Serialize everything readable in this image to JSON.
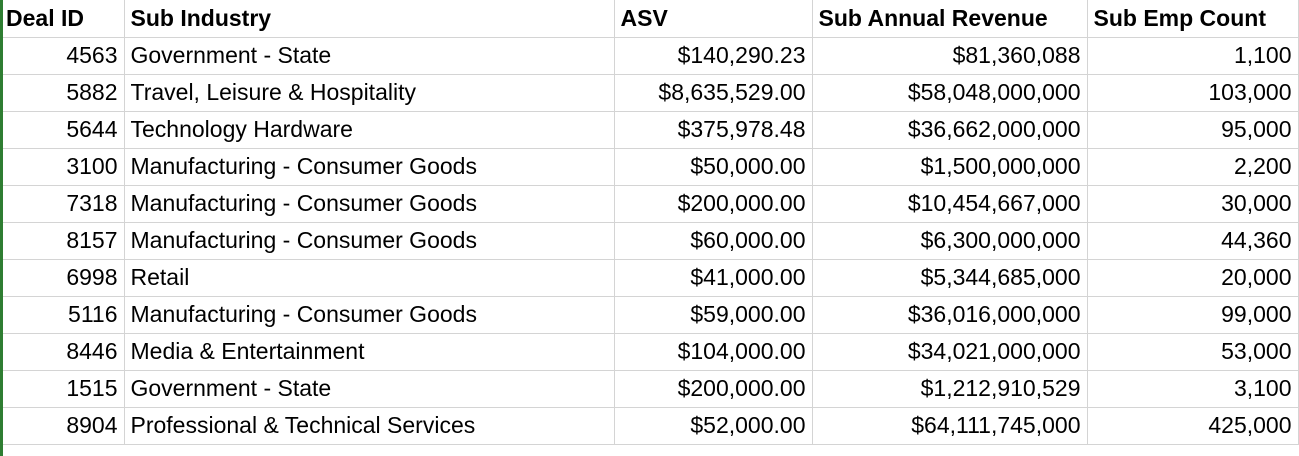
{
  "table": {
    "columns": [
      "Deal ID",
      "Sub Industry",
      "ASV",
      "Sub Annual Revenue",
      "Sub Emp Count"
    ],
    "rows": [
      [
        "4563",
        "Government - State",
        "$140,290.23",
        "$81,360,088",
        "1,100"
      ],
      [
        "5882",
        "Travel, Leisure & Hospitality",
        "$8,635,529.00",
        "$58,048,000,000",
        "103,000"
      ],
      [
        "5644",
        "Technology Hardware",
        "$375,978.48",
        "$36,662,000,000",
        "95,000"
      ],
      [
        "3100",
        "Manufacturing - Consumer Goods",
        "$50,000.00",
        "$1,500,000,000",
        "2,200"
      ],
      [
        "7318",
        "Manufacturing - Consumer Goods",
        "$200,000.00",
        "$10,454,667,000",
        "30,000"
      ],
      [
        "8157",
        "Manufacturing - Consumer Goods",
        "$60,000.00",
        "$6,300,000,000",
        "44,360"
      ],
      [
        "6998",
        "Retail",
        "$41,000.00",
        "$5,344,685,000",
        "20,000"
      ],
      [
        "5116",
        "Manufacturing - Consumer Goods",
        "$59,000.00",
        "$36,016,000,000",
        "99,000"
      ],
      [
        "8446",
        "Media & Entertainment",
        "$104,000.00",
        "$34,021,000,000",
        "53,000"
      ],
      [
        "1515",
        "Government - State",
        "$200,000.00",
        "$1,212,910,529",
        "3,100"
      ],
      [
        "8904",
        "Professional & Technical Services",
        "$52,000.00",
        "$64,111,745,000",
        "425,000"
      ]
    ]
  },
  "colors": {
    "gridline": "#d4d4d4",
    "selection_edge": "#2e7d32",
    "text": "#000000"
  }
}
